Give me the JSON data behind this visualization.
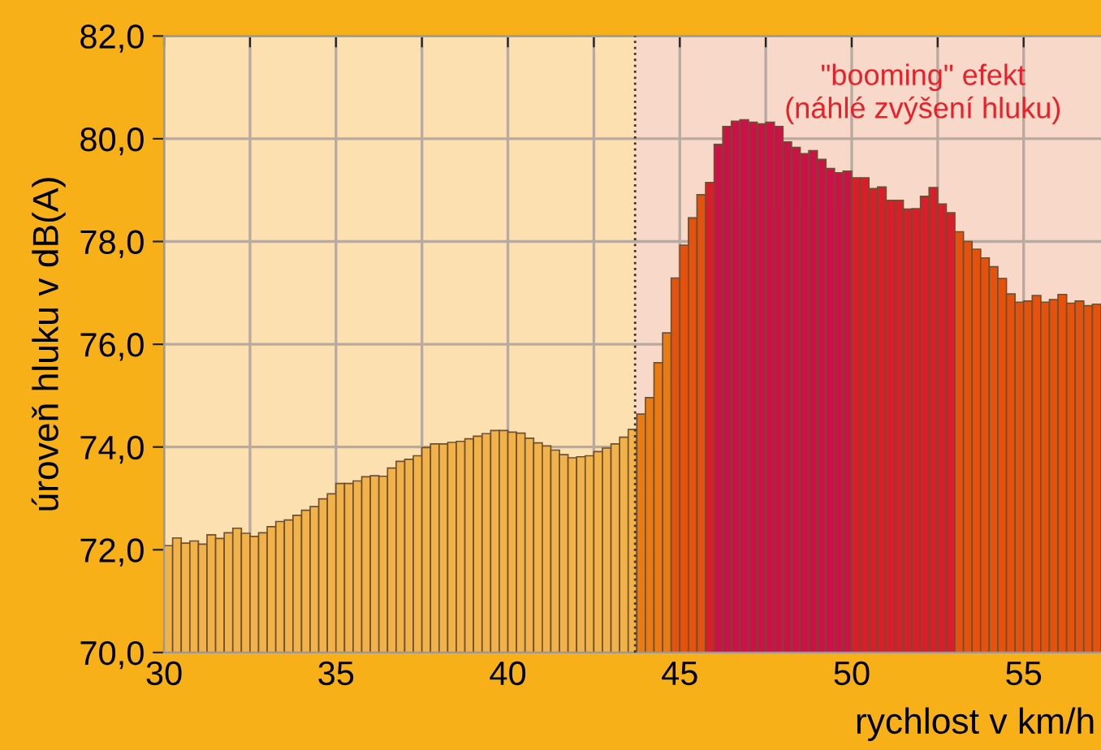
{
  "chart_data": {
    "type": "histogram",
    "bins": [
      30,
      30.25,
      30.5,
      30.75,
      31,
      31.25,
      31.5,
      31.75,
      32,
      32.25,
      32.5,
      32.75,
      33,
      33.25,
      33.5,
      33.75,
      34,
      34.25,
      34.5,
      34.75,
      35,
      35.25,
      35.5,
      35.75,
      36,
      36.25,
      36.5,
      36.75,
      37,
      37.25,
      37.5,
      37.75,
      38,
      38.25,
      38.5,
      38.75,
      39,
      39.25,
      39.5,
      39.75,
      40,
      40.25,
      40.5,
      40.75,
      41,
      41.25,
      41.5,
      41.75,
      42,
      42.25,
      42.5,
      42.75,
      43,
      43.25,
      43.5,
      43.75,
      44,
      44.25,
      44.5,
      44.75,
      45,
      45.25,
      45.5,
      45.75,
      46,
      46.25,
      46.5,
      46.75,
      47,
      47.25,
      47.5,
      47.75,
      48,
      48.25,
      48.5,
      48.75,
      49,
      49.25,
      49.5,
      49.75,
      50,
      50.25,
      50.5,
      50.75,
      51,
      51.25,
      51.5,
      51.75,
      52,
      52.25,
      52.5,
      52.75,
      53,
      53.25,
      53.5,
      53.75,
      54,
      54.25,
      54.5,
      54.75,
      55,
      55.25,
      55.5,
      55.75,
      56,
      56.25,
      56.5,
      56.75,
      57,
      57.25
    ],
    "values": [
      72.08,
      72.23,
      72.13,
      72.17,
      72.11,
      72.29,
      72.22,
      72.33,
      72.42,
      72.32,
      72.26,
      72.33,
      72.45,
      72.55,
      72.58,
      72.67,
      72.77,
      72.84,
      72.99,
      73.09,
      73.29,
      73.29,
      73.34,
      73.42,
      73.44,
      73.43,
      73.59,
      73.72,
      73.76,
      73.83,
      73.99,
      74.06,
      74.06,
      74.09,
      74.11,
      74.16,
      74.21,
      74.26,
      74.32,
      74.32,
      74.29,
      74.27,
      74.17,
      74.08,
      74.02,
      73.94,
      73.85,
      73.79,
      73.81,
      73.83,
      73.91,
      73.98,
      74.06,
      74.19,
      74.34,
      74.64,
      74.96,
      75.64,
      76.22,
      77.29,
      77.93,
      78.46,
      78.91,
      79.15,
      79.89,
      80.24,
      80.34,
      80.37,
      80.32,
      80.29,
      80.32,
      80.24,
      79.94,
      79.83,
      79.71,
      79.77,
      79.6,
      79.42,
      79.34,
      79.37,
      79.24,
      79.24,
      79.03,
      79.06,
      78.8,
      78.8,
      78.63,
      78.64,
      78.88,
      79.05,
      78.73,
      78.56,
      78.19,
      78.0,
      77.85,
      77.68,
      77.51,
      77.28,
      76.98,
      76.82,
      76.84,
      76.95,
      76.82,
      76.87,
      76.97,
      76.8,
      76.84,
      76.75,
      76.78
    ],
    "colors": [
      "#f2b24a",
      "#f2b24a",
      "#f2b24a",
      "#f2b24a",
      "#f2b24a",
      "#f2b24a",
      "#f2b24a",
      "#f2b24a",
      "#f2b24a",
      "#f2b24a",
      "#f2b24a",
      "#f2b24a",
      "#f2b24a",
      "#f2b24a",
      "#f2b24a",
      "#f2b24a",
      "#f2b24a",
      "#f2b24a",
      "#f2b24a",
      "#f2b24a",
      "#f2b24a",
      "#f2b24a",
      "#f2b24a",
      "#f2b24a",
      "#f2b24a",
      "#f2b24a",
      "#f2b24a",
      "#f2b24a",
      "#f2b24a",
      "#f2b24a",
      "#f2b24a",
      "#f2b24a",
      "#f2b24a",
      "#f2b24a",
      "#f2b24a",
      "#f2b24a",
      "#f2b24a",
      "#f2b24a",
      "#f2b24a",
      "#f2b24a",
      "#f2b24a",
      "#f2b24a",
      "#f2b24a",
      "#f2b24a",
      "#f2b24a",
      "#f2b24a",
      "#f2b24a",
      "#f2b24a",
      "#f2b24a",
      "#f2b24a",
      "#f2b24a",
      "#f2b24a",
      "#f2b24a",
      "#f2b24a",
      "#f2b24a",
      "#ea7a12",
      "#ea7a12",
      "#ea7a12",
      "#ea7a12",
      "#e4520e",
      "#e4520e",
      "#e4520e",
      "#e4520e",
      "#d81e2a",
      "#cc1048",
      "#cc1048",
      "#cc1048",
      "#cc1048",
      "#cc1048",
      "#cc1048",
      "#cc1048",
      "#cc1048",
      "#cc1048",
      "#cc1048",
      "#cc1048",
      "#cc1048",
      "#cc1048",
      "#cc1048",
      "#cc1048",
      "#cc1048",
      "#d81e2a",
      "#d81e2a",
      "#d81e2a",
      "#d81e2a",
      "#d81e2a",
      "#d81e2a",
      "#d81e2a",
      "#d81e2a",
      "#d81e2a",
      "#d81e2a",
      "#d81e2a",
      "#d81e2a",
      "#e4520e",
      "#e4520e",
      "#e4520e",
      "#e4520e",
      "#e4520e",
      "#e4520e",
      "#e4520e",
      "#e4520e",
      "#e4520e",
      "#e4520e",
      "#e4520e",
      "#e4520e",
      "#e4520e",
      "#e4520e",
      "#e4520e",
      "#e4520e",
      "#e4520e"
    ],
    "xlim": [
      30,
      57.25
    ],
    "ylim": [
      70,
      82
    ],
    "xticks": [
      30,
      {
        "value": 32.5,
        "label": null
      },
      35,
      {
        "value": 37.5,
        "label": null
      },
      40,
      {
        "value": 42.5,
        "label": null
      },
      45,
      {
        "value": 47.5,
        "label": null
      },
      50,
      {
        "value": 52.5,
        "label": null
      },
      55
    ],
    "yticks": [
      {
        "value": 70,
        "label": "70,0"
      },
      {
        "value": 72,
        "label": "72,0"
      },
      {
        "value": 74,
        "label": "74,0"
      },
      {
        "value": 76,
        "label": "76,0"
      },
      {
        "value": 78,
        "label": "78,0"
      },
      {
        "value": 80,
        "label": "80,0"
      },
      {
        "value": 82,
        "label": "82,0"
      }
    ],
    "xlabel": "rychlost v km/h",
    "ylabel": "úroveň hluku v dB(A)",
    "grid": true,
    "ref_lines": [
      {
        "axis": "x",
        "value": 43.7,
        "color": "#333333",
        "line_style": "dotted"
      }
    ],
    "bands": [
      {
        "axis": "x",
        "from": 30,
        "to": 43.7,
        "color": "#fde0b0"
      },
      {
        "axis": "x",
        "from": 43.7,
        "to": 57.25,
        "color": "#f8d8c8"
      }
    ],
    "annotations": [
      "\"booming\" efekt\n(náhlé zvýšení hluku)"
    ]
  }
}
